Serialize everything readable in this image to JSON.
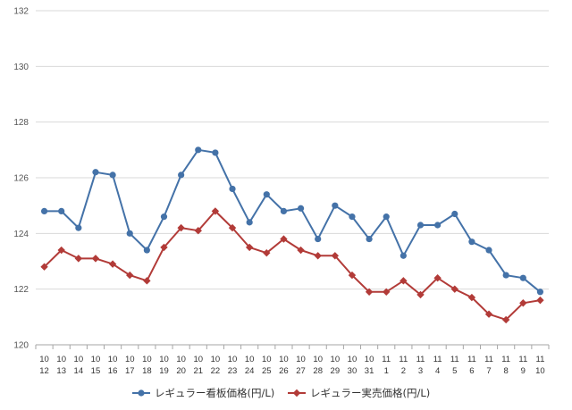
{
  "chart_data": {
    "type": "line",
    "x_top": [
      "10",
      "10",
      "10",
      "10",
      "10",
      "10",
      "10",
      "10",
      "10",
      "10",
      "10",
      "10",
      "10",
      "10",
      "10",
      "10",
      "10",
      "10",
      "10",
      "10",
      "11",
      "11",
      "11",
      "11",
      "11",
      "11",
      "11",
      "11",
      "11",
      "11"
    ],
    "x_bottom": [
      "12",
      "13",
      "14",
      "15",
      "16",
      "17",
      "18",
      "19",
      "20",
      "21",
      "22",
      "23",
      "24",
      "25",
      "26",
      "27",
      "28",
      "29",
      "30",
      "31",
      "1",
      "2",
      "3",
      "4",
      "5",
      "6",
      "7",
      "8",
      "9",
      "10"
    ],
    "ylim": [
      120,
      132
    ],
    "yticks": [
      120,
      122,
      124,
      126,
      128,
      130,
      132
    ],
    "grid": true,
    "legend_position": "bottom",
    "series": [
      {
        "name": "レギュラー看板価格(円/L)",
        "color": "#4472a8",
        "marker": "circle",
        "values": [
          124.8,
          124.8,
          124.2,
          126.2,
          126.1,
          124.0,
          123.4,
          124.6,
          126.1,
          127.0,
          126.9,
          125.6,
          124.4,
          125.4,
          124.8,
          124.9,
          123.8,
          125.0,
          124.6,
          123.8,
          124.6,
          123.2,
          124.3,
          124.3,
          124.7,
          123.7,
          123.4,
          122.5,
          122.4,
          121.9
        ]
      },
      {
        "name": "レギュラー実売価格(円/L)",
        "color": "#b23b38",
        "marker": "diamond",
        "values": [
          122.8,
          123.4,
          123.1,
          123.1,
          122.9,
          122.5,
          122.3,
          123.5,
          124.2,
          124.1,
          124.8,
          124.2,
          123.5,
          123.3,
          123.8,
          123.4,
          123.2,
          123.2,
          122.5,
          121.9,
          121.9,
          122.3,
          121.8,
          122.4,
          122.0,
          121.7,
          121.1,
          120.9,
          121.5,
          121.6
        ]
      }
    ]
  }
}
